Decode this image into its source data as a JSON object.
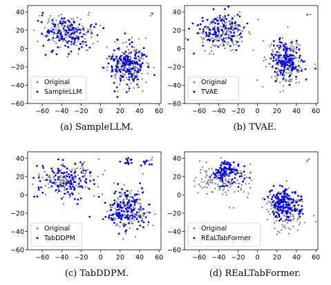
{
  "figure": {
    "captions": [
      "(a)  SampleLLM.",
      "(b)  TVAE.",
      "(c)  TabDDPM.",
      "(d)  REaLTabFormer."
    ]
  },
  "colors": {
    "original": "#808080",
    "synthetic": "#0000ee"
  },
  "chart_data": [
    {
      "type": "scatter",
      "xlim": [
        -75,
        62
      ],
      "ylim": [
        -60,
        47
      ],
      "xticks": [
        -60,
        -40,
        -20,
        0,
        20,
        40,
        60
      ],
      "yticks": [
        -60,
        -40,
        -20,
        0,
        20,
        40
      ],
      "legend_position": "lower-left",
      "series": [
        {
          "name": "Original",
          "color": "#808080",
          "clusters": [
            {
              "center": [
                -35,
                17
              ],
              "spread": [
                17,
                12
              ],
              "count": 150
            },
            {
              "center": [
                28,
                -16
              ],
              "spread": [
                12,
                15
              ],
              "count": 170
            },
            {
              "center": [
                52,
                38
              ],
              "spread": [
                1.5,
                1.5
              ],
              "count": 4
            }
          ]
        },
        {
          "name": "SampleLLM",
          "color": "#0000ee",
          "clusters": [
            {
              "center": [
                -35,
                17
              ],
              "spread": [
                17,
                12
              ],
              "count": 120
            },
            {
              "center": [
                28,
                -18
              ],
              "spread": [
                12,
                15
              ],
              "count": 160
            }
          ]
        }
      ]
    },
    {
      "type": "scatter",
      "xlim": [
        -75,
        62
      ],
      "ylim": [
        -60,
        47
      ],
      "xticks": [
        -60,
        -40,
        -20,
        0,
        20,
        40,
        60
      ],
      "yticks": [
        -60,
        -40,
        -20,
        0,
        20,
        40
      ],
      "legend_position": "lower-left",
      "series": [
        {
          "name": "Original",
          "color": "#808080",
          "clusters": [
            {
              "center": [
                -35,
                17
              ],
              "spread": [
                17,
                12
              ],
              "count": 150
            },
            {
              "center": [
                28,
                -16
              ],
              "spread": [
                12,
                15
              ],
              "count": 170
            },
            {
              "center": [
                52,
                38
              ],
              "spread": [
                1.5,
                1.5
              ],
              "count": 4
            }
          ]
        },
        {
          "name": "TVAE",
          "color": "#0000ee",
          "clusters": [
            {
              "center": [
                -38,
                20
              ],
              "spread": [
                14,
                12
              ],
              "count": 120
            },
            {
              "center": [
                30,
                -12
              ],
              "spread": [
                10,
                13
              ],
              "count": 140
            }
          ]
        }
      ]
    },
    {
      "type": "scatter",
      "xlim": [
        -75,
        62
      ],
      "ylim": [
        -60,
        47
      ],
      "xticks": [
        -60,
        -40,
        -20,
        0,
        20,
        40,
        60
      ],
      "yticks": [
        -60,
        -40,
        -20,
        0,
        20,
        40
      ],
      "legend_position": "lower-left",
      "series": [
        {
          "name": "Original",
          "color": "#808080",
          "clusters": [
            {
              "center": [
                -35,
                17
              ],
              "spread": [
                17,
                12
              ],
              "count": 150
            },
            {
              "center": [
                28,
                -16
              ],
              "spread": [
                12,
                15
              ],
              "count": 170
            },
            {
              "center": [
                52,
                38
              ],
              "spread": [
                1.5,
                1.5
              ],
              "count": 4
            }
          ]
        },
        {
          "name": "TabDDPM",
          "color": "#0000ee",
          "clusters": [
            {
              "center": [
                -35,
                15
              ],
              "spread": [
                17,
                13
              ],
              "count": 110
            },
            {
              "center": [
                25,
                -16
              ],
              "spread": [
                14,
                16
              ],
              "count": 140
            },
            {
              "center": [
                28,
                36
              ],
              "spread": [
                4,
                3
              ],
              "count": 14
            },
            {
              "center": [
                48,
                34
              ],
              "spread": [
                3,
                3
              ],
              "count": 8
            }
          ]
        }
      ]
    },
    {
      "type": "scatter",
      "xlim": [
        -75,
        62
      ],
      "ylim": [
        -60,
        47
      ],
      "xticks": [
        -60,
        -40,
        -20,
        0,
        20,
        40,
        60
      ],
      "yticks": [
        -60,
        -40,
        -20,
        0,
        20,
        40
      ],
      "legend_position": "lower-left",
      "series": [
        {
          "name": "Original",
          "color": "#808080",
          "clusters": [
            {
              "center": [
                -35,
                17
              ],
              "spread": [
                17,
                12
              ],
              "count": 150
            },
            {
              "center": [
                28,
                -16
              ],
              "spread": [
                12,
                15
              ],
              "count": 170
            },
            {
              "center": [
                52,
                38
              ],
              "spread": [
                1.5,
                1.5
              ],
              "count": 4
            }
          ]
        },
        {
          "name": "REaLTabFormer",
          "color": "#0000ee",
          "clusters": [
            {
              "center": [
                -30,
                25
              ],
              "spread": [
                10,
                9
              ],
              "count": 110
            },
            {
              "center": [
                28,
                -10
              ],
              "spread": [
                9,
                11
              ],
              "count": 170
            }
          ]
        }
      ]
    }
  ]
}
